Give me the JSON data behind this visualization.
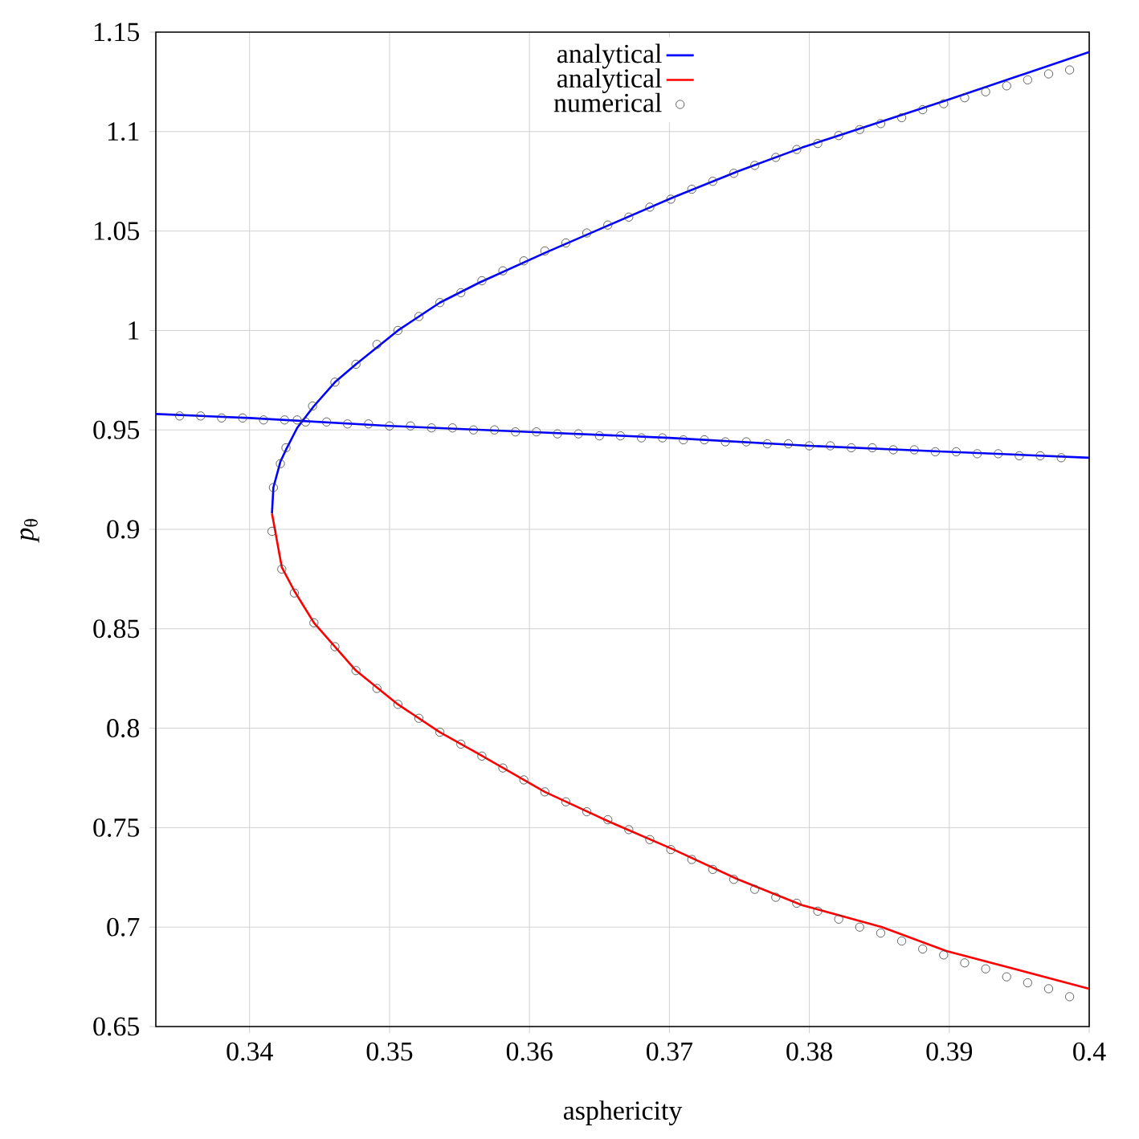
{
  "chart_data": {
    "type": "line",
    "xlabel": "asphericity",
    "ylabel": "*p*$_{θ}$",
    "xlim": [
      0.3333,
      0.4
    ],
    "ylim": [
      0.65,
      1.15
    ],
    "xticks": [
      0.34,
      0.35,
      0.36,
      0.37,
      0.38,
      0.39,
      0.4
    ],
    "yticks": [
      0.65,
      0.7,
      0.75,
      0.8,
      0.85,
      0.9,
      0.95,
      1,
      1.05,
      1.1,
      1.15
    ],
    "grid": true,
    "legend": "top",
    "series": [
      {
        "name": "analytical",
        "color": "#0000ff",
        "x": [
          0.3416,
          0.3417,
          0.3422,
          0.3426,
          0.3434,
          0.3446,
          0.3461,
          0.3476,
          0.3506,
          0.3536,
          0.3564,
          0.3611,
          0.3657,
          0.3703,
          0.3749,
          0.3795,
          0.3821,
          0.3899,
          0.4
        ],
        "values": [
          0.908,
          0.921,
          0.934,
          0.94,
          0.951,
          0.962,
          0.974,
          0.983,
          1.0,
          1.014,
          1.024,
          1.039,
          1.053,
          1.067,
          1.08,
          1.092,
          1.098,
          1.116,
          1.14
        ]
      },
      {
        "name": "analytical",
        "color": "#ff0000",
        "x": [
          0.3416,
          0.3423,
          0.3432,
          0.3446,
          0.3476,
          0.3506,
          0.3536,
          0.3564,
          0.3611,
          0.3657,
          0.3703,
          0.3749,
          0.3795,
          0.3852,
          0.3898,
          0.4
        ],
        "values": [
          0.908,
          0.881,
          0.869,
          0.853,
          0.829,
          0.812,
          0.798,
          0.787,
          0.768,
          0.753,
          0.739,
          0.724,
          0.711,
          0.7,
          0.688,
          0.669
        ]
      },
      {
        "name": "numerical",
        "type": "scatter",
        "color": "#404040",
        "marker": "circle",
        "x": [
          0.335,
          0.3365,
          0.338,
          0.3395,
          0.341,
          0.3425,
          0.344,
          0.3455,
          0.347,
          0.3485,
          0.35,
          0.3515,
          0.353,
          0.3545,
          0.356,
          0.3575,
          0.359,
          0.3605,
          0.362,
          0.3635,
          0.365,
          0.3665,
          0.368,
          0.3695,
          0.371,
          0.3725,
          0.374,
          0.3755,
          0.377,
          0.3785,
          0.38,
          0.3815,
          0.383,
          0.3845,
          0.386,
          0.3875,
          0.389,
          0.3905,
          0.392,
          0.3935,
          0.395,
          0.3965,
          0.398,
          0.3417,
          0.3422,
          0.3426,
          0.3434,
          0.3445,
          0.3461,
          0.3476,
          0.3491,
          0.3506,
          0.3521,
          0.3536,
          0.3551,
          0.3566,
          0.3581,
          0.3596,
          0.3611,
          0.3626,
          0.3641,
          0.3656,
          0.3671,
          0.3686,
          0.3701,
          0.3716,
          0.3731,
          0.3746,
          0.3761,
          0.3776,
          0.3791,
          0.3806,
          0.3821,
          0.3836,
          0.3851,
          0.3866,
          0.3881,
          0.3896,
          0.3911,
          0.3926,
          0.3941,
          0.3956,
          0.3971,
          0.3986,
          0.3416,
          0.3423,
          0.3432,
          0.3446,
          0.3461,
          0.3476,
          0.3491,
          0.3506,
          0.3521,
          0.3536,
          0.3551,
          0.3566,
          0.3581,
          0.3596,
          0.3611,
          0.3626,
          0.3641,
          0.3656,
          0.3671,
          0.3686,
          0.3701,
          0.3716,
          0.3731,
          0.3746,
          0.3761,
          0.3776,
          0.3791,
          0.3806,
          0.3821,
          0.3836,
          0.3851,
          0.3866,
          0.3881,
          0.3896,
          0.3911,
          0.3926,
          0.3941,
          0.3956,
          0.3971,
          0.3986
        ],
        "values": [
          0.957,
          0.957,
          0.956,
          0.956,
          0.955,
          0.955,
          0.954,
          0.954,
          0.953,
          0.953,
          0.952,
          0.952,
          0.951,
          0.951,
          0.95,
          0.95,
          0.949,
          0.949,
          0.948,
          0.948,
          0.947,
          0.947,
          0.946,
          0.946,
          0.945,
          0.945,
          0.944,
          0.944,
          0.943,
          0.943,
          0.942,
          0.942,
          0.941,
          0.941,
          0.94,
          0.94,
          0.939,
          0.939,
          0.938,
          0.938,
          0.937,
          0.937,
          0.936,
          0.921,
          0.933,
          0.941,
          0.955,
          0.962,
          0.974,
          0.983,
          0.993,
          1.0,
          1.007,
          1.014,
          1.019,
          1.025,
          1.03,
          1.035,
          1.04,
          1.044,
          1.049,
          1.053,
          1.057,
          1.062,
          1.066,
          1.071,
          1.075,
          1.079,
          1.083,
          1.087,
          1.091,
          1.094,
          1.098,
          1.101,
          1.104,
          1.107,
          1.111,
          1.114,
          1.117,
          1.12,
          1.123,
          1.126,
          1.129,
          1.131,
          0.899,
          0.88,
          0.868,
          0.853,
          0.841,
          0.829,
          0.82,
          0.812,
          0.805,
          0.798,
          0.792,
          0.786,
          0.78,
          0.774,
          0.768,
          0.763,
          0.758,
          0.754,
          0.749,
          0.744,
          0.739,
          0.734,
          0.729,
          0.724,
          0.719,
          0.715,
          0.712,
          0.708,
          0.704,
          0.7,
          0.697,
          0.693,
          0.689,
          0.686,
          0.682,
          0.679,
          0.675,
          0.672,
          0.669,
          0.665
        ]
      },
      {
        "color": "#0000ff",
        "x": [
          0.3333,
          0.34,
          0.35,
          0.36,
          0.37,
          0.38,
          0.39,
          0.4
        ],
        "values": [
          0.958,
          0.956,
          0.952,
          0.949,
          0.946,
          0.942,
          0.939,
          0.936
        ]
      }
    ]
  }
}
